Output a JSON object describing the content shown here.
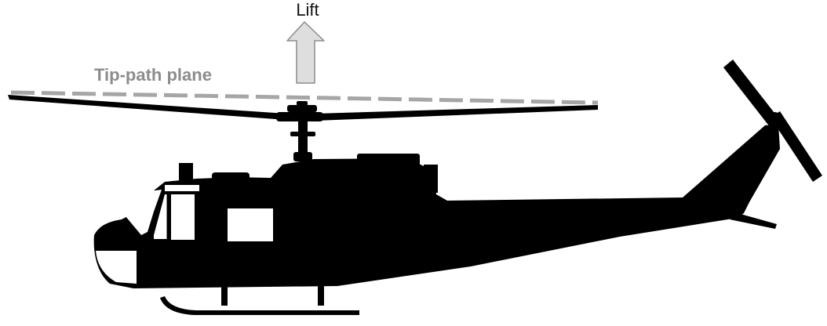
{
  "labels": {
    "lift": "Lift",
    "tip_path_plane": "Tip-path plane"
  },
  "colors": {
    "silhouette": "#000000",
    "window": "#ffffff",
    "tip_path_line": "#a6a6a6",
    "tip_path_text": "#8c8c8c",
    "lift_arrow_fill": "#dedede",
    "lift_arrow_stroke": "#8c8c8c"
  },
  "icons": {
    "aircraft": "helicopter-silhouette-icon",
    "force": "lift-arrow-icon"
  }
}
